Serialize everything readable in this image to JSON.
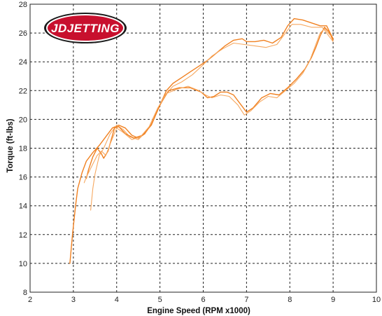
{
  "chart_data": {
    "type": "line",
    "title": "",
    "xlabel": "Engine Speed (RPM x1000)",
    "ylabel": "Torque (ft-lbs)",
    "xlim": [
      2,
      10
    ],
    "ylim": [
      8,
      28
    ],
    "xticks": [
      2,
      3,
      4,
      5,
      6,
      7,
      8,
      9,
      10
    ],
    "yticks": [
      8,
      10,
      12,
      14,
      16,
      18,
      20,
      22,
      24,
      26,
      28
    ],
    "grid": true,
    "legend": "none",
    "logo_text": "JDJETTING",
    "colors": {
      "primary": "#F08020",
      "light": "#F6A860",
      "logo_red": "#C8102E",
      "logo_dark": "#1a1a1a"
    },
    "series": [
      {
        "color": "#F08020",
        "points": [
          [
            2.92,
            10.0
          ],
          [
            2.98,
            12.0
          ],
          [
            3.05,
            14.0
          ],
          [
            3.1,
            15.2
          ],
          [
            3.2,
            16.3
          ],
          [
            3.3,
            17.1
          ],
          [
            3.45,
            17.7
          ],
          [
            3.6,
            18.2
          ],
          [
            3.75,
            18.8
          ],
          [
            3.9,
            19.4
          ],
          [
            4.05,
            19.6
          ],
          [
            4.2,
            19.4
          ],
          [
            4.35,
            18.9
          ],
          [
            4.5,
            18.7
          ],
          [
            4.65,
            19.0
          ],
          [
            4.8,
            19.7
          ],
          [
            5.0,
            21.0
          ],
          [
            5.15,
            22.0
          ],
          [
            5.3,
            22.5
          ],
          [
            5.5,
            22.9
          ],
          [
            5.7,
            23.3
          ],
          [
            5.9,
            23.7
          ],
          [
            6.1,
            24.1
          ],
          [
            6.3,
            24.6
          ],
          [
            6.5,
            25.1
          ],
          [
            6.7,
            25.5
          ],
          [
            6.9,
            25.6
          ],
          [
            7.0,
            25.4
          ],
          [
            7.2,
            25.4
          ],
          [
            7.4,
            25.5
          ],
          [
            7.6,
            25.3
          ],
          [
            7.8,
            25.7
          ],
          [
            7.95,
            26.5
          ],
          [
            8.1,
            27.0
          ],
          [
            8.3,
            26.9
          ],
          [
            8.5,
            26.7
          ],
          [
            8.7,
            26.5
          ],
          [
            8.85,
            26.5
          ],
          [
            9.0,
            25.6
          ]
        ]
      },
      {
        "color": "#F6A860",
        "points": [
          [
            3.4,
            13.7
          ],
          [
            3.45,
            15.2
          ],
          [
            3.5,
            16.2
          ],
          [
            3.6,
            17.5
          ],
          [
            3.7,
            18.0
          ],
          [
            3.85,
            19.0
          ],
          [
            4.0,
            19.6
          ],
          [
            4.15,
            19.3
          ],
          [
            4.3,
            18.8
          ],
          [
            4.5,
            18.6
          ],
          [
            4.7,
            19.2
          ],
          [
            4.9,
            20.3
          ],
          [
            5.1,
            21.6
          ],
          [
            5.3,
            22.3
          ],
          [
            5.5,
            22.6
          ],
          [
            5.75,
            23.1
          ],
          [
            6.0,
            23.8
          ],
          [
            6.2,
            24.4
          ],
          [
            6.45,
            24.9
          ],
          [
            6.7,
            25.3
          ],
          [
            6.95,
            25.2
          ],
          [
            7.2,
            25.1
          ],
          [
            7.45,
            25.0
          ],
          [
            7.7,
            25.2
          ],
          [
            7.9,
            26.0
          ],
          [
            8.05,
            26.6
          ],
          [
            8.25,
            26.6
          ],
          [
            8.5,
            26.4
          ],
          [
            8.75,
            26.4
          ],
          [
            8.9,
            25.8
          ],
          [
            9.0,
            25.4
          ]
        ]
      },
      {
        "color": "#F08020",
        "points": [
          [
            3.3,
            15.9
          ],
          [
            3.35,
            16.5
          ],
          [
            3.45,
            17.4
          ],
          [
            3.55,
            18.0
          ],
          [
            3.65,
            17.6
          ],
          [
            3.7,
            17.3
          ],
          [
            3.8,
            17.8
          ],
          [
            3.95,
            19.4
          ],
          [
            4.05,
            19.5
          ],
          [
            4.2,
            19.0
          ],
          [
            4.4,
            18.7
          ],
          [
            4.6,
            18.9
          ],
          [
            4.8,
            19.6
          ],
          [
            5.0,
            21.0
          ],
          [
            5.2,
            22.0
          ],
          [
            5.45,
            22.2
          ],
          [
            5.7,
            22.2
          ],
          [
            5.95,
            21.9
          ],
          [
            6.1,
            21.5
          ],
          [
            6.25,
            21.6
          ],
          [
            6.4,
            21.9
          ],
          [
            6.55,
            21.9
          ],
          [
            6.7,
            21.7
          ],
          [
            6.85,
            21.1
          ],
          [
            7.0,
            20.5
          ],
          [
            7.15,
            20.8
          ],
          [
            7.35,
            21.5
          ],
          [
            7.55,
            21.8
          ],
          [
            7.75,
            21.7
          ],
          [
            7.95,
            22.2
          ],
          [
            8.15,
            22.8
          ],
          [
            8.35,
            23.5
          ],
          [
            8.5,
            24.3
          ],
          [
            8.6,
            25.0
          ],
          [
            8.7,
            25.8
          ],
          [
            8.8,
            26.4
          ],
          [
            8.9,
            26.1
          ],
          [
            9.0,
            25.5
          ]
        ]
      },
      {
        "color": "#F6A860",
        "points": [
          [
            3.25,
            15.6
          ],
          [
            3.3,
            16.0
          ],
          [
            3.4,
            16.6
          ],
          [
            3.55,
            17.5
          ],
          [
            3.65,
            17.8
          ],
          [
            3.75,
            17.5
          ],
          [
            3.85,
            18.3
          ],
          [
            4.0,
            19.4
          ],
          [
            4.15,
            19.1
          ],
          [
            4.35,
            18.6
          ],
          [
            4.55,
            18.8
          ],
          [
            4.75,
            19.5
          ],
          [
            4.95,
            20.8
          ],
          [
            5.15,
            21.8
          ],
          [
            5.4,
            22.1
          ],
          [
            5.65,
            22.3
          ],
          [
            5.9,
            22.0
          ],
          [
            6.05,
            21.7
          ],
          [
            6.2,
            21.5
          ],
          [
            6.4,
            21.7
          ],
          [
            6.6,
            21.6
          ],
          [
            6.8,
            21.0
          ],
          [
            6.95,
            20.3
          ],
          [
            7.1,
            20.6
          ],
          [
            7.3,
            21.2
          ],
          [
            7.5,
            21.6
          ],
          [
            7.7,
            21.5
          ],
          [
            7.9,
            22.0
          ],
          [
            8.1,
            22.5
          ],
          [
            8.3,
            23.2
          ],
          [
            8.45,
            24.0
          ],
          [
            8.55,
            24.8
          ],
          [
            8.7,
            26.0
          ],
          [
            8.8,
            26.3
          ],
          [
            8.95,
            25.8
          ]
        ]
      }
    ]
  }
}
